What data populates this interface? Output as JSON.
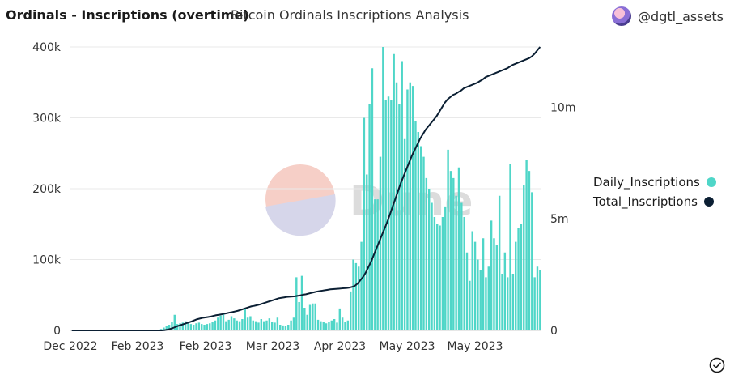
{
  "header": {
    "title": "Ordinals - Inscriptions (overtime)",
    "subtitle": "Bitcoin Ordinals Inscriptions Analysis",
    "author": "@dgtl_assets"
  },
  "watermark": "Dune",
  "colors": {
    "bar": "#4fd6c8",
    "line": "#0b1f33",
    "grid": "#e9e9e9",
    "watermark_red": "#f6cfc7",
    "watermark_blue": "#d6d6ea"
  },
  "chart_data": {
    "type": "bar",
    "x_tick_labels": [
      "Dec 2022",
      "Feb 2023",
      "Feb 2023",
      "Mar 2023",
      "Apr 2023",
      "May 2023",
      "May 2023"
    ],
    "y_left": {
      "ticks": [
        0,
        100000,
        200000,
        300000,
        400000
      ],
      "tick_labels": [
        "0",
        "100k",
        "200k",
        "300k",
        "400k"
      ],
      "ylim": [
        0,
        400000
      ]
    },
    "y_right": {
      "ticks": [
        0,
        5000000,
        10000000
      ],
      "tick_labels": [
        "0",
        "5m",
        "10m"
      ],
      "ylim": [
        0,
        12700000
      ]
    },
    "legend_position": "right",
    "series": [
      {
        "name": "Daily_Inscriptions",
        "type": "bar",
        "axis": "left",
        "color": "#4fd6c8",
        "values": [
          0,
          0,
          0,
          0,
          0,
          0,
          0,
          0,
          0,
          0,
          0,
          0,
          0,
          0,
          0,
          0,
          0,
          0,
          0,
          0,
          0,
          0,
          0,
          0,
          0,
          0,
          0,
          0,
          0,
          0,
          0,
          0,
          0,
          2000,
          4000,
          6000,
          8000,
          12000,
          22000,
          9000,
          10000,
          11000,
          13000,
          11000,
          9000,
          8000,
          10000,
          11000,
          9000,
          8000,
          9000,
          10000,
          12000,
          14000,
          18000,
          21000,
          25000,
          13000,
          15000,
          20000,
          17000,
          14000,
          13000,
          16000,
          32000,
          18000,
          20000,
          14000,
          13000,
          11000,
          16000,
          13000,
          14000,
          17000,
          12000,
          11000,
          18000,
          8000,
          7000,
          6000,
          8000,
          14000,
          18000,
          75000,
          40000,
          77000,
          32000,
          22000,
          36000,
          38000,
          38000,
          15000,
          13000,
          12000,
          10000,
          12000,
          14000,
          16000,
          11000,
          31000,
          18000,
          12000,
          14000,
          55000,
          100000,
          95000,
          90000,
          125000,
          300000,
          220000,
          320000,
          370000,
          185000,
          185000,
          245000,
          400000,
          325000,
          330000,
          325000,
          390000,
          350000,
          320000,
          380000,
          270000,
          340000,
          350000,
          345000,
          295000,
          280000,
          260000,
          245000,
          215000,
          200000,
          180000,
          160000,
          150000,
          148000,
          160000,
          175000,
          255000,
          225000,
          215000,
          190000,
          230000,
          180000,
          160000,
          110000,
          70000,
          140000,
          125000,
          100000,
          85000,
          130000,
          75000,
          90000,
          155000,
          130000,
          120000,
          190000,
          80000,
          110000,
          75000,
          235000,
          80000,
          125000,
          145000,
          150000,
          205000,
          240000,
          225000,
          195000,
          75000,
          90000,
          85000
        ]
      },
      {
        "name": "Total_Inscriptions",
        "type": "line",
        "axis": "right",
        "color": "#0b1f33",
        "values": [
          0,
          0,
          0,
          0,
          0,
          0,
          0,
          0,
          0,
          0,
          0,
          0,
          0,
          0,
          0,
          0,
          0,
          0,
          0,
          0,
          0,
          0,
          0,
          0,
          0,
          0,
          0,
          0,
          0,
          0,
          0,
          0,
          0,
          0,
          10000,
          30000,
          60000,
          100000,
          150000,
          200000,
          240000,
          280000,
          320000,
          360000,
          400000,
          450000,
          500000,
          530000,
          560000,
          580000,
          600000,
          620000,
          650000,
          680000,
          700000,
          720000,
          750000,
          770000,
          800000,
          820000,
          850000,
          880000,
          920000,
          960000,
          1000000,
          1040000,
          1080000,
          1100000,
          1130000,
          1160000,
          1200000,
          1240000,
          1280000,
          1320000,
          1360000,
          1400000,
          1440000,
          1460000,
          1480000,
          1500000,
          1510000,
          1520000,
          1530000,
          1550000,
          1570000,
          1600000,
          1620000,
          1650000,
          1680000,
          1710000,
          1740000,
          1760000,
          1780000,
          1800000,
          1820000,
          1840000,
          1850000,
          1860000,
          1870000,
          1880000,
          1890000,
          1900000,
          1920000,
          1950000,
          2000000,
          2100000,
          2250000,
          2400000,
          2600000,
          2850000,
          3100000,
          3400000,
          3700000,
          4000000,
          4300000,
          4600000,
          4900000,
          5250000,
          5600000,
          5950000,
          6300000,
          6650000,
          6950000,
          7250000,
          7550000,
          7850000,
          8100000,
          8350000,
          8600000,
          8800000,
          9000000,
          9150000,
          9300000,
          9450000,
          9600000,
          9800000,
          10000000,
          10200000,
          10350000,
          10450000,
          10550000,
          10600000,
          10680000,
          10750000,
          10850000,
          10900000,
          10950000,
          11000000,
          11050000,
          11100000,
          11180000,
          11250000,
          11350000,
          11400000,
          11450000,
          11500000,
          11550000,
          11600000,
          11650000,
          11700000,
          11750000,
          11830000,
          11900000,
          11950000,
          12000000,
          12050000,
          12100000,
          12150000,
          12200000,
          12280000,
          12400000,
          12550000,
          12700000
        ]
      }
    ]
  }
}
